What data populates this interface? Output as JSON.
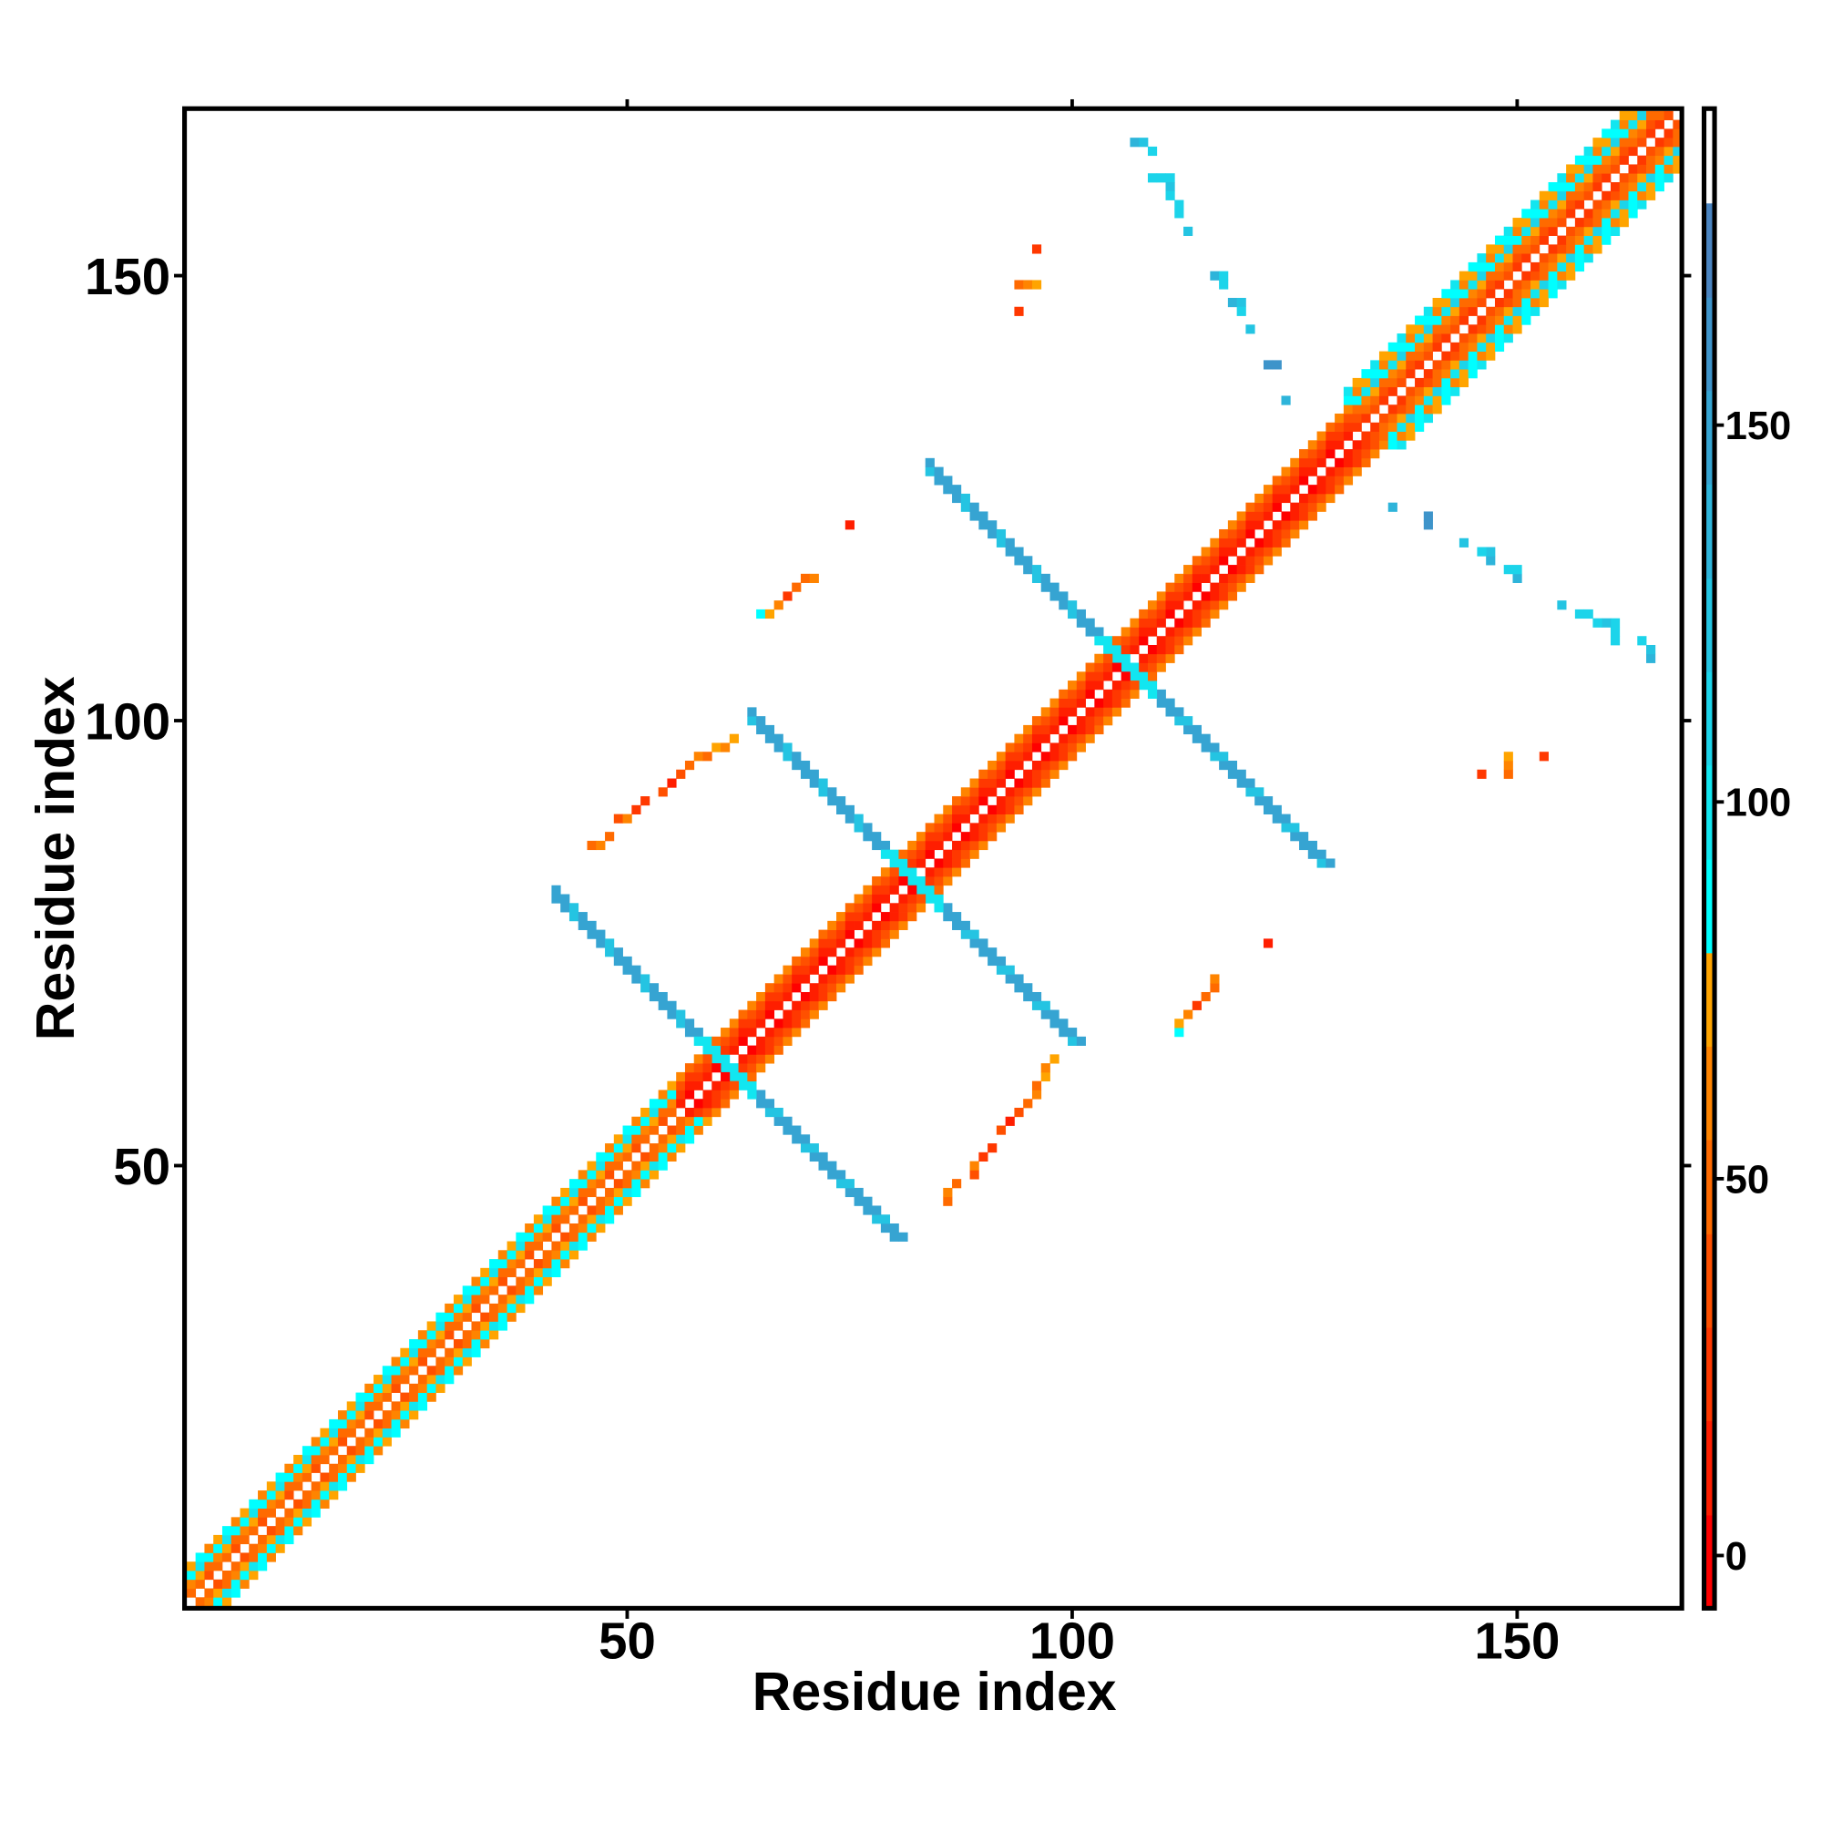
{
  "chart_data": {
    "type": "heatmap",
    "title": "",
    "xlabel": "Residue index",
    "ylabel": "Residue index",
    "n_residues": 168,
    "xlim": [
      0.5,
      168.5
    ],
    "ylim": [
      0.5,
      168.5
    ],
    "xticks": [
      50,
      100,
      150
    ],
    "yticks": [
      50,
      100,
      150
    ],
    "xtick_labels": [
      "50",
      "100",
      "150"
    ],
    "ytick_labels": [
      "50",
      "100",
      "150"
    ],
    "symmetric": true,
    "grid": false,
    "colorbar": {
      "range": [
        -7,
        192
      ],
      "ticks": [
        0,
        50,
        100,
        150
      ],
      "tick_labels": [
        "0",
        "50",
        "100",
        "150"
      ],
      "bins": [
        {
          "max": 5.4,
          "color": "#ff0000"
        },
        {
          "max": 17.9,
          "color": "#ff1e00"
        },
        {
          "max": 30.3,
          "color": "#ff3800"
        },
        {
          "max": 42.7,
          "color": "#ff5000"
        },
        {
          "max": 55.2,
          "color": "#ff6a00"
        },
        {
          "max": 67.6,
          "color": "#ff8400"
        },
        {
          "max": 80.0,
          "color": "#ffa400"
        },
        {
          "max": 92.4,
          "color": "#00ffff"
        },
        {
          "max": 104.9,
          "color": "#12e6f0"
        },
        {
          "max": 117.3,
          "color": "#1cd4ea"
        },
        {
          "max": 129.7,
          "color": "#24c4e2"
        },
        {
          "max": 142.2,
          "color": "#2eb4da"
        },
        {
          "max": 154.6,
          "color": "#36a4d2"
        },
        {
          "max": 167.0,
          "color": "#3e94ca"
        },
        {
          "max": 179.5,
          "color": "#4a84c0"
        },
        {
          "max": 192.0,
          "color": "#ffffff"
        }
      ]
    },
    "diagonal_bands": [
      {
        "from": 1,
        "to": 55,
        "offset_values": [
          45,
          62,
          92,
          72
        ]
      },
      {
        "from": 55,
        "to": 131,
        "offset_values": [
          8,
          20,
          32,
          58
        ]
      },
      {
        "from": 131,
        "to": 168,
        "offset_values": [
          28,
          46,
          62,
          96,
          74,
          88
        ]
      }
    ],
    "antiparallel_strands": [
      {
        "i_from": 42,
        "i_to": 80,
        "sum": 122,
        "value": 150,
        "width": 2
      },
      {
        "i_from": 64,
        "i_to": 100,
        "sum": 164,
        "value": 150,
        "width": 2
      },
      {
        "i_from": 84,
        "i_to": 127,
        "sum": 212,
        "value": 150,
        "width": 2
      }
    ],
    "contacts": [
      [
        46,
        86,
        48
      ],
      [
        47,
        86,
        60
      ],
      [
        48,
        87,
        48
      ],
      [
        49,
        89,
        38
      ],
      [
        50,
        89,
        60
      ],
      [
        51,
        90,
        20
      ],
      [
        52,
        91,
        24
      ],
      [
        54,
        92,
        32
      ],
      [
        55,
        93,
        10
      ],
      [
        56,
        94,
        40
      ],
      [
        57,
        95,
        52
      ],
      [
        58,
        96,
        60
      ],
      [
        59,
        96,
        48
      ],
      [
        60,
        97,
        70
      ],
      [
        61,
        97,
        60
      ],
      [
        62,
        98,
        70
      ],
      [
        65,
        112,
        92
      ],
      [
        66,
        112,
        72
      ],
      [
        67,
        113,
        60
      ],
      [
        68,
        114,
        30
      ],
      [
        69,
        115,
        50
      ],
      [
        70,
        116,
        48
      ],
      [
        71,
        116,
        62
      ],
      [
        75,
        122,
        10
      ],
      [
        94,
        146,
        20
      ],
      [
        94,
        149,
        50
      ],
      [
        95,
        149,
        60
      ],
      [
        96,
        149,
        72
      ],
      [
        96,
        153,
        20
      ],
      [
        107,
        165,
        130
      ],
      [
        108,
        165,
        120
      ],
      [
        109,
        164,
        112
      ],
      [
        109,
        161,
        112
      ],
      [
        110,
        161,
        115
      ],
      [
        111,
        161,
        112
      ],
      [
        111,
        160,
        125
      ],
      [
        111,
        159,
        112
      ],
      [
        112,
        158,
        115
      ],
      [
        112,
        157,
        112
      ],
      [
        113,
        155,
        125
      ],
      [
        116,
        150,
        130
      ],
      [
        117,
        150,
        112
      ],
      [
        117,
        149,
        112
      ],
      [
        118,
        147,
        140
      ],
      [
        119,
        147,
        120
      ],
      [
        119,
        146,
        112
      ],
      [
        120,
        144,
        125
      ],
      [
        122,
        140,
        155
      ],
      [
        123,
        140,
        155
      ],
      [
        124,
        136,
        140
      ]
    ]
  }
}
